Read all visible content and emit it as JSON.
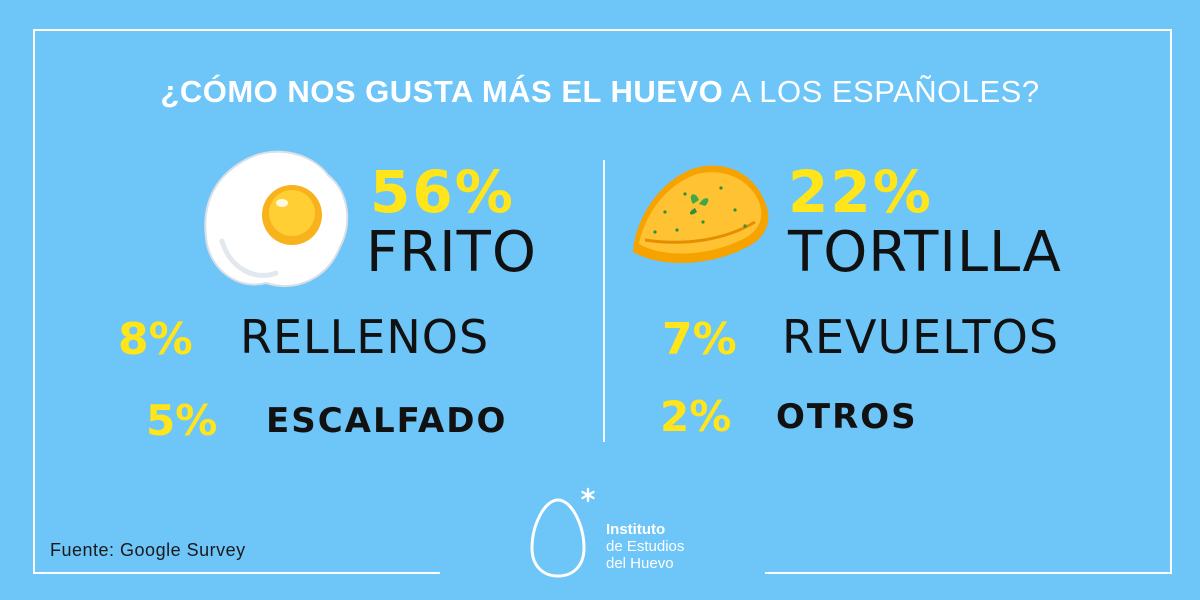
{
  "title": {
    "bold": "¿CÓMO NOS GUSTA MÁS EL HUEVO",
    "regular": "A LOS ESPAÑOLES?"
  },
  "items": [
    {
      "percent": "56%",
      "label": "FRITO",
      "value": 56
    },
    {
      "percent": "22%",
      "label": "TORTILLA",
      "value": 22
    },
    {
      "percent": "8%",
      "label": "RELLENOS",
      "value": 8
    },
    {
      "percent": "7%",
      "label": "REVUELTOS",
      "value": 7
    },
    {
      "percent": "5%",
      "label": "ESCALFADO",
      "value": 5
    },
    {
      "percent": "2%",
      "label": "OTROS",
      "value": 2
    }
  ],
  "source": "Fuente: Google Survey",
  "logo": {
    "line1": "Instituto",
    "line2": "de Estudios",
    "line3": "del Huevo"
  },
  "colors": {
    "background": "#6dc5f8",
    "percent": "#ffe51a",
    "label": "#111111",
    "frame": "#ffffff"
  },
  "icons": [
    "fried-egg-icon",
    "omelette-icon",
    "egg-logo-icon"
  ]
}
